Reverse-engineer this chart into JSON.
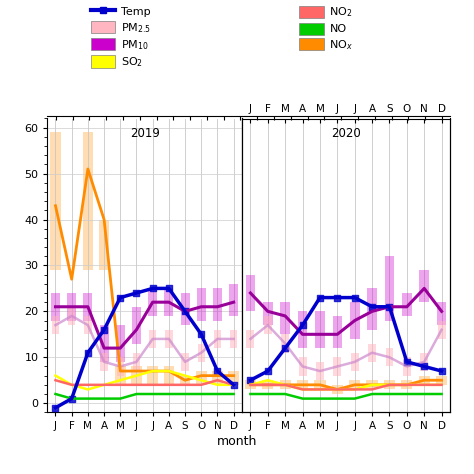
{
  "months": [
    "J",
    "F",
    "M",
    "A",
    "M",
    "J",
    "J",
    "A",
    "S",
    "O",
    "N",
    "D"
  ],
  "temp_2019": [
    -1,
    1,
    11,
    16,
    23,
    24,
    25,
    25,
    20,
    15,
    7,
    4
  ],
  "temp_2020": [
    5,
    7,
    12,
    17,
    23,
    23,
    23,
    21,
    21,
    9,
    8,
    7
  ],
  "pm25_2019": [
    17,
    19,
    17,
    9,
    8,
    9,
    14,
    14,
    9,
    11,
    14,
    14
  ],
  "pm25_hi_2019": [
    19,
    21,
    19,
    11,
    10,
    11,
    16,
    16,
    11,
    13,
    16,
    16
  ],
  "pm25_lo_2019": [
    15,
    17,
    15,
    7,
    6,
    7,
    12,
    12,
    7,
    9,
    12,
    12
  ],
  "pm25_2020": [
    14,
    17,
    13,
    8,
    7,
    8,
    9,
    11,
    10,
    8,
    9,
    16
  ],
  "pm25_hi_2020": [
    16,
    19,
    15,
    10,
    9,
    10,
    11,
    13,
    12,
    10,
    11,
    18
  ],
  "pm25_lo_2020": [
    12,
    15,
    11,
    6,
    5,
    6,
    7,
    9,
    8,
    6,
    7,
    14
  ],
  "pm10_2019": [
    21,
    21,
    21,
    12,
    12,
    16,
    22,
    22,
    20,
    21,
    21,
    22
  ],
  "pm10_hi_2019": [
    24,
    24,
    24,
    17,
    17,
    21,
    25,
    25,
    24,
    25,
    25,
    26
  ],
  "pm10_lo_2019": [
    18,
    18,
    18,
    9,
    9,
    13,
    19,
    19,
    17,
    18,
    18,
    19
  ],
  "pm10_2020": [
    24,
    20,
    19,
    15,
    15,
    15,
    18,
    20,
    21,
    21,
    25,
    20
  ],
  "pm10_hi_2020": [
    28,
    22,
    22,
    20,
    20,
    19,
    22,
    25,
    32,
    24,
    29,
    22
  ],
  "pm10_lo_2020": [
    20,
    17,
    15,
    12,
    12,
    12,
    14,
    16,
    18,
    19,
    22,
    17
  ],
  "so2_2019": [
    6,
    4,
    3,
    4,
    5,
    6,
    7,
    7,
    6,
    5,
    4,
    4
  ],
  "so2_2020": [
    4,
    5,
    4,
    3,
    3,
    3,
    3,
    4,
    4,
    4,
    4,
    4
  ],
  "no2_2019": [
    5,
    4,
    4,
    4,
    4,
    4,
    4,
    4,
    4,
    4,
    5,
    4
  ],
  "no2_2020": [
    4,
    4,
    4,
    3,
    3,
    3,
    3,
    3,
    4,
    4,
    4,
    4
  ],
  "no_2019": [
    2,
    1,
    1,
    1,
    1,
    2,
    2,
    2,
    2,
    2,
    2,
    2
  ],
  "no_2020": [
    2,
    2,
    2,
    1,
    1,
    1,
    1,
    2,
    2,
    2,
    2,
    2
  ],
  "nox_2019": [
    43,
    27,
    51,
    40,
    7,
    7,
    7,
    7,
    5,
    6,
    6,
    6
  ],
  "nox_2020": [
    4,
    4,
    4,
    4,
    4,
    3,
    4,
    4,
    4,
    4,
    5,
    5
  ],
  "nox_hi_2019": [
    59,
    29,
    59,
    40,
    8,
    8,
    8,
    8,
    6,
    7,
    7,
    7
  ],
  "nox_lo_2019": [
    29,
    29,
    29,
    29,
    4,
    4,
    4,
    4,
    4,
    4,
    4,
    4
  ],
  "nox_hi_2020": [
    5,
    5,
    5,
    5,
    5,
    4,
    5,
    5,
    5,
    5,
    6,
    6
  ],
  "nox_lo_2020": [
    3,
    3,
    3,
    3,
    3,
    2,
    3,
    3,
    3,
    3,
    4,
    4
  ],
  "color_temp": "#0000CD",
  "color_pm25": "#FFB6C1",
  "color_pm25_line": "#CC88CC",
  "color_pm10": "#CC00CC",
  "color_pm10_line": "#990099",
  "color_so2": "#FFFF00",
  "color_no2": "#FF6666",
  "color_no": "#00CC00",
  "color_nox": "#FF8C00",
  "ylim_lo": -2,
  "ylim_hi": 62,
  "yticks": [
    0,
    10,
    20,
    30,
    40,
    50,
    60
  ],
  "xlabel": "month",
  "grid_color": "#CCCCCC"
}
